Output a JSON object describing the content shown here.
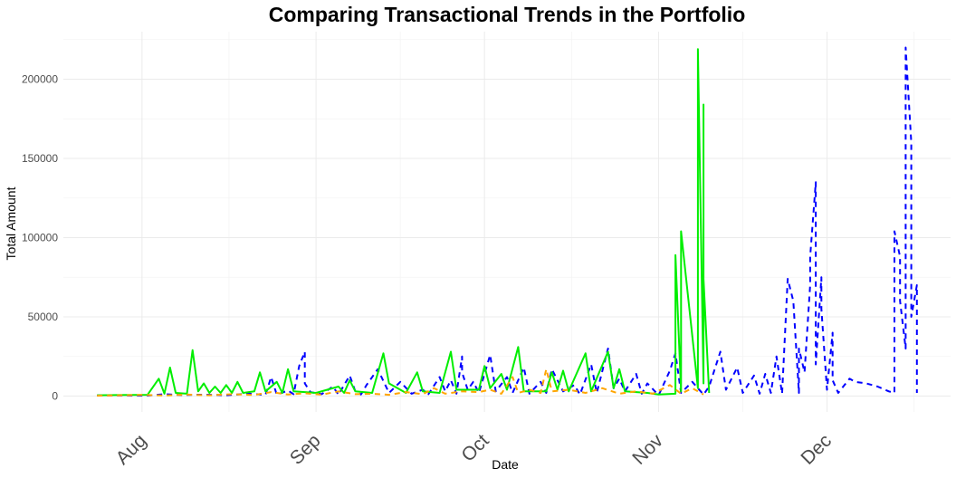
{
  "chart_data": {
    "type": "line",
    "title": "Comparing Transactional Trends in the Portfolio",
    "xlabel": "Date",
    "ylabel": "Total Amount",
    "xlim": [
      "2024-07-18",
      "2024-12-23"
    ],
    "ylim": [
      -10000,
      230000
    ],
    "x_ticks": [
      {
        "date": "2024-08-01",
        "label": "Aug"
      },
      {
        "date": "2024-09-01",
        "label": "Sep"
      },
      {
        "date": "2024-10-01",
        "label": "Oct"
      },
      {
        "date": "2024-11-01",
        "label": "Nov"
      },
      {
        "date": "2024-12-01",
        "label": "Dec"
      }
    ],
    "y_ticks": [
      0,
      50000,
      100000,
      150000,
      200000
    ],
    "y_tick_labels": [
      "0",
      "50000",
      "100000",
      "150000",
      "200000"
    ],
    "grid": true,
    "legend": "none",
    "series": [
      {
        "color": "#0000ff",
        "linestyle": "dashed",
        "points": [
          [
            "2024-07-24",
            400
          ],
          [
            "2024-08-02",
            300
          ],
          [
            "2024-08-05",
            1200
          ],
          [
            "2024-08-08",
            600
          ],
          [
            "2024-08-12",
            900
          ],
          [
            "2024-08-16",
            500
          ],
          [
            "2024-08-20",
            1500
          ],
          [
            "2024-08-23",
            800
          ],
          [
            "2024-08-24",
            12000
          ],
          [
            "2024-08-25",
            1000
          ],
          [
            "2024-08-27",
            3500
          ],
          [
            "2024-08-28",
            1200
          ],
          [
            "2024-08-29",
            19000
          ],
          [
            "2024-08-30",
            28000
          ],
          [
            "2024-08-30",
            8000
          ],
          [
            "2024-08-31",
            2500
          ],
          [
            "2024-09-02",
            1200
          ],
          [
            "2024-09-04",
            6000
          ],
          [
            "2024-09-05",
            900
          ],
          [
            "2024-09-07",
            13000
          ],
          [
            "2024-09-08",
            3000
          ],
          [
            "2024-09-09",
            1000
          ],
          [
            "2024-09-10",
            7000
          ],
          [
            "2024-09-12",
            17000
          ],
          [
            "2024-09-14",
            2000
          ],
          [
            "2024-09-16",
            9000
          ],
          [
            "2024-09-18",
            1500
          ],
          [
            "2024-09-20",
            4000
          ],
          [
            "2024-09-21",
            1200
          ],
          [
            "2024-09-23",
            12000
          ],
          [
            "2024-09-24",
            3000
          ],
          [
            "2024-09-25",
            10000
          ],
          [
            "2024-09-26",
            1500
          ],
          [
            "2024-09-27",
            25000
          ],
          [
            "2024-09-27",
            15000
          ],
          [
            "2024-09-28",
            4000
          ],
          [
            "2024-09-29",
            9000
          ],
          [
            "2024-09-30",
            2000
          ],
          [
            "2024-10-02",
            26000
          ],
          [
            "2024-10-03",
            3000
          ],
          [
            "2024-10-05",
            12000
          ],
          [
            "2024-10-06",
            2000
          ],
          [
            "2024-10-08",
            18000
          ],
          [
            "2024-10-09",
            1500
          ],
          [
            "2024-10-11",
            9000
          ],
          [
            "2024-10-12",
            2000
          ],
          [
            "2024-10-13",
            17000
          ],
          [
            "2024-10-15",
            3000
          ],
          [
            "2024-10-17",
            7000
          ],
          [
            "2024-10-18",
            1000
          ],
          [
            "2024-10-20",
            20000
          ],
          [
            "2024-10-21",
            2000
          ],
          [
            "2024-10-23",
            30000
          ],
          [
            "2024-10-24",
            5000
          ],
          [
            "2024-10-25",
            11000
          ],
          [
            "2024-10-26",
            3000
          ],
          [
            "2024-10-28",
            14000
          ],
          [
            "2024-10-29",
            1500
          ],
          [
            "2024-10-30",
            8000
          ],
          [
            "2024-11-01",
            500
          ],
          [
            "2024-11-03",
            16000
          ],
          [
            "2024-11-04",
            27000
          ],
          [
            "2024-11-05",
            2000
          ],
          [
            "2024-11-07",
            9000
          ],
          [
            "2024-11-09",
            1000
          ],
          [
            "2024-11-10",
            6000
          ],
          [
            "2024-11-12",
            28000
          ],
          [
            "2024-11-13",
            4000
          ],
          [
            "2024-11-15",
            18000
          ],
          [
            "2024-11-16",
            2000
          ],
          [
            "2024-11-18",
            13000
          ],
          [
            "2024-11-19",
            1500
          ],
          [
            "2024-11-20",
            14000
          ],
          [
            "2024-11-21",
            2000
          ],
          [
            "2024-11-22",
            25000
          ],
          [
            "2024-11-23",
            1500
          ],
          [
            "2024-11-24",
            74000
          ],
          [
            "2024-11-25",
            60000
          ],
          [
            "2024-11-26",
            2000
          ],
          [
            "2024-11-26",
            30000
          ],
          [
            "2024-11-27",
            15000
          ],
          [
            "2024-11-28",
            70000
          ],
          [
            "2024-11-28",
            88000
          ],
          [
            "2024-11-29",
            135000
          ],
          [
            "2024-11-29",
            20000
          ],
          [
            "2024-11-30",
            75000
          ],
          [
            "2024-11-30",
            55000
          ],
          [
            "2024-12-01",
            4000
          ],
          [
            "2024-12-02",
            40000
          ],
          [
            "2024-12-02",
            10000
          ],
          [
            "2024-12-03",
            2000
          ],
          [
            "2024-12-05",
            11000
          ],
          [
            "2024-12-06",
            9000
          ],
          [
            "2024-12-08",
            8000
          ],
          [
            "2024-12-10",
            6000
          ],
          [
            "2024-12-12",
            3000
          ],
          [
            "2024-12-13",
            2000
          ],
          [
            "2024-12-13",
            104000
          ],
          [
            "2024-12-14",
            88000
          ],
          [
            "2024-12-14",
            60000
          ],
          [
            "2024-12-15",
            30000
          ],
          [
            "2024-12-15",
            220000
          ],
          [
            "2024-12-16",
            160000
          ],
          [
            "2024-12-16",
            50000
          ],
          [
            "2024-12-17",
            70000
          ],
          [
            "2024-12-17",
            2000
          ]
        ]
      },
      {
        "color": "#00ee00",
        "linestyle": "solid",
        "points": [
          [
            "2024-07-24",
            500
          ],
          [
            "2024-08-02",
            800
          ],
          [
            "2024-08-04",
            11000
          ],
          [
            "2024-08-05",
            1500
          ],
          [
            "2024-08-06",
            18000
          ],
          [
            "2024-08-07",
            2000
          ],
          [
            "2024-08-09",
            1500
          ],
          [
            "2024-08-10",
            29000
          ],
          [
            "2024-08-11",
            3000
          ],
          [
            "2024-08-12",
            8000
          ],
          [
            "2024-08-13",
            2000
          ],
          [
            "2024-08-14",
            6000
          ],
          [
            "2024-08-15",
            2000
          ],
          [
            "2024-08-16",
            7000
          ],
          [
            "2024-08-17",
            2000
          ],
          [
            "2024-08-18",
            9000
          ],
          [
            "2024-08-19",
            2000
          ],
          [
            "2024-08-21",
            3000
          ],
          [
            "2024-08-22",
            15000
          ],
          [
            "2024-08-23",
            3000
          ],
          [
            "2024-08-25",
            9000
          ],
          [
            "2024-08-26",
            2000
          ],
          [
            "2024-08-27",
            17000
          ],
          [
            "2024-08-28",
            3000
          ],
          [
            "2024-09-01",
            2000
          ],
          [
            "2024-09-05",
            6000
          ],
          [
            "2024-09-06",
            2000
          ],
          [
            "2024-09-07",
            10000
          ],
          [
            "2024-09-08",
            3000
          ],
          [
            "2024-09-11",
            2000
          ],
          [
            "2024-09-13",
            27000
          ],
          [
            "2024-09-14",
            8000
          ],
          [
            "2024-09-17",
            2000
          ],
          [
            "2024-09-19",
            15000
          ],
          [
            "2024-09-20",
            3000
          ],
          [
            "2024-09-23",
            2000
          ],
          [
            "2024-09-25",
            28000
          ],
          [
            "2024-09-26",
            4000
          ],
          [
            "2024-09-30",
            4000
          ],
          [
            "2024-10-01",
            19000
          ],
          [
            "2024-10-02",
            5000
          ],
          [
            "2024-10-04",
            14000
          ],
          [
            "2024-10-05",
            4000
          ],
          [
            "2024-10-07",
            31000
          ],
          [
            "2024-10-08",
            3000
          ],
          [
            "2024-10-12",
            3000
          ],
          [
            "2024-10-13",
            15000
          ],
          [
            "2024-10-14",
            4000
          ],
          [
            "2024-10-15",
            16000
          ],
          [
            "2024-10-16",
            3000
          ],
          [
            "2024-10-19",
            27000
          ],
          [
            "2024-10-20",
            3000
          ],
          [
            "2024-10-23",
            28000
          ],
          [
            "2024-10-24",
            5000
          ],
          [
            "2024-10-25",
            17000
          ],
          [
            "2024-10-26",
            3000
          ],
          [
            "2024-10-30",
            2000
          ],
          [
            "2024-11-01",
            1000
          ],
          [
            "2024-11-04",
            1500
          ],
          [
            "2024-11-04",
            89000
          ],
          [
            "2024-11-05",
            3000
          ],
          [
            "2024-11-05",
            104000
          ],
          [
            "2024-11-08",
            5000
          ],
          [
            "2024-11-08",
            219000
          ],
          [
            "2024-11-09",
            8000
          ],
          [
            "2024-11-09",
            184000
          ],
          [
            "2024-11-09",
            110000
          ],
          [
            "2024-11-09",
            74000
          ],
          [
            "2024-11-10",
            2000
          ]
        ]
      },
      {
        "color": "#ffa500",
        "linestyle": "dashed",
        "points": [
          [
            "2024-07-24",
            200
          ],
          [
            "2024-08-01",
            700
          ],
          [
            "2024-08-05",
            400
          ],
          [
            "2024-08-09",
            900
          ],
          [
            "2024-08-13",
            500
          ],
          [
            "2024-08-17",
            1200
          ],
          [
            "2024-08-21",
            700
          ],
          [
            "2024-08-24",
            2500
          ],
          [
            "2024-08-27",
            1000
          ],
          [
            "2024-08-30",
            1800
          ],
          [
            "2024-09-02",
            900
          ],
          [
            "2024-09-05",
            3000
          ],
          [
            "2024-09-08",
            1200
          ],
          [
            "2024-09-11",
            1500
          ],
          [
            "2024-09-14",
            800
          ],
          [
            "2024-09-17",
            2500
          ],
          [
            "2024-09-20",
            1200
          ],
          [
            "2024-09-22",
            5000
          ],
          [
            "2024-09-24",
            1500
          ],
          [
            "2024-09-27",
            3000
          ],
          [
            "2024-09-30",
            2500
          ],
          [
            "2024-10-02",
            4000
          ],
          [
            "2024-10-04",
            1500
          ],
          [
            "2024-10-06",
            12000
          ],
          [
            "2024-10-07",
            2000
          ],
          [
            "2024-10-09",
            4000
          ],
          [
            "2024-10-11",
            2000
          ],
          [
            "2024-10-12",
            17000
          ],
          [
            "2024-10-13",
            3000
          ],
          [
            "2024-10-16",
            4000
          ],
          [
            "2024-10-19",
            2000
          ],
          [
            "2024-10-22",
            5000
          ],
          [
            "2024-10-25",
            1500
          ],
          [
            "2024-10-28",
            3000
          ],
          [
            "2024-10-31",
            1500
          ],
          [
            "2024-11-03",
            7000
          ],
          [
            "2024-11-05",
            1500
          ],
          [
            "2024-11-07",
            5000
          ],
          [
            "2024-11-09",
            1000
          ]
        ]
      }
    ]
  }
}
